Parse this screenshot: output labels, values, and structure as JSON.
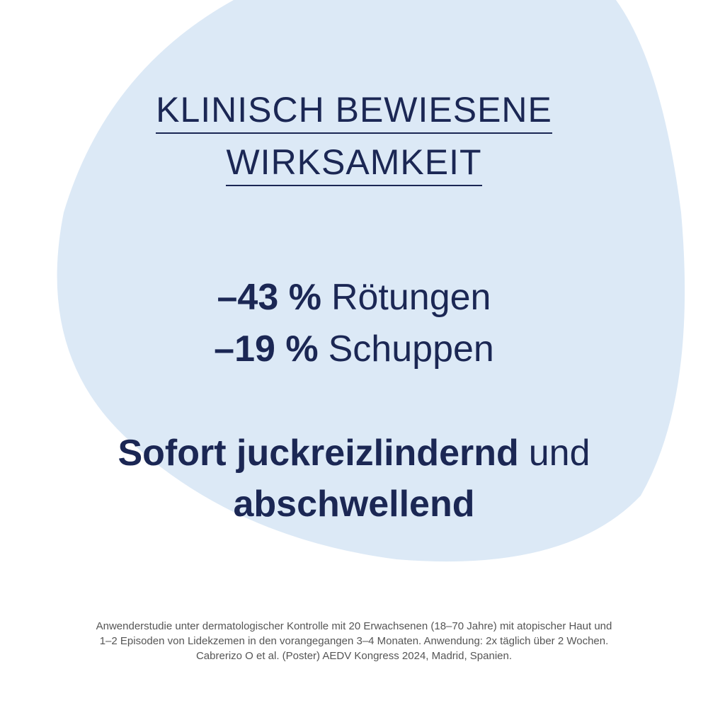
{
  "header": {
    "title_lines": [
      "KLINISCH BEWIESENE",
      "WIRKSAMKEIT"
    ]
  },
  "stats": [
    {
      "value": "–43 %",
      "label": "Rötungen"
    },
    {
      "value": "–19 %",
      "label": "Schuppen"
    }
  ],
  "claim": {
    "bold": "Sofort juckreizlindernd",
    "normal": "und",
    "bold_second": "abschwellend"
  },
  "footnote": [
    "Anwenderstudie unter dermatologischer Kontrolle mit 20 Erwachsenen (18–70 Jahre) mit atopischer Haut und",
    "1–2 Episoden von Lidekzemen in den vorangegangen 3–4 Monaten. Anwendung: 2x täglich über 2 Wochen.",
    "Cabrerizo O et al. (Poster) AEDV Kongress 2024, Madrid, Spanien."
  ]
}
